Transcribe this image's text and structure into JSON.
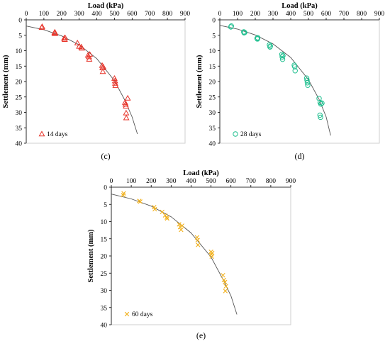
{
  "chart_data": [
    {
      "type": "scatter",
      "xlabel": "Load (kPa)",
      "ylabel": "Settlement (mm)",
      "xlim": [
        0,
        900
      ],
      "ylim": [
        0,
        40
      ],
      "x_ticks": [
        0,
        100,
        200,
        300,
        400,
        500,
        600,
        700,
        800,
        900
      ],
      "y_ticks": [
        0,
        5,
        10,
        15,
        20,
        25,
        30,
        35,
        40
      ],
      "x_axis_position": "top",
      "y_axis_reversed": true,
      "grid": false,
      "legend": "bottom-left",
      "caption": "(c)",
      "color": "#e8342a",
      "marker": "triangle",
      "series": [
        {
          "name": "14 days",
          "points": [
            [
              88,
              2.5
            ],
            [
              90,
              2.2
            ],
            [
              160,
              4.2
            ],
            [
              162,
              4.0
            ],
            [
              163,
              4.5
            ],
            [
              215,
              6.0
            ],
            [
              218,
              6.4
            ],
            [
              220,
              5.8
            ],
            [
              290,
              7.5
            ],
            [
              300,
              8.6
            ],
            [
              312,
              8.8
            ],
            [
              315,
              9.2
            ],
            [
              350,
              11.5
            ],
            [
              355,
              12.0
            ],
            [
              357,
              12.8
            ],
            [
              360,
              11.2
            ],
            [
              430,
              14.8
            ],
            [
              432,
              15.6
            ],
            [
              434,
              16.8
            ],
            [
              436,
              15.2
            ],
            [
              500,
              19.0
            ],
            [
              503,
              19.8
            ],
            [
              504,
              20.6
            ],
            [
              506,
              21.3
            ],
            [
              560,
              26.8
            ],
            [
              563,
              27.4
            ],
            [
              565,
              28.0
            ],
            [
              566,
              30.2
            ],
            [
              567,
              31.8
            ],
            [
              575,
              25.4
            ]
          ]
        }
      ],
      "trend": [
        [
          0,
          2
        ],
        [
          100,
          3.2
        ],
        [
          200,
          5.2
        ],
        [
          300,
          8.1
        ],
        [
          400,
          12.6
        ],
        [
          500,
          19.7
        ],
        [
          560,
          26.2
        ],
        [
          600,
          31.5
        ],
        [
          630,
          37
        ]
      ]
    },
    {
      "type": "scatter",
      "xlabel": "Load (kPa)",
      "ylabel": "Settlement (mm)",
      "xlim": [
        0,
        900
      ],
      "ylim": [
        0,
        40
      ],
      "x_ticks": [
        0,
        100,
        200,
        300,
        400,
        500,
        600,
        700,
        800,
        900
      ],
      "y_ticks": [
        0,
        5,
        10,
        15,
        20,
        25,
        30,
        35,
        40
      ],
      "x_axis_position": "top",
      "y_axis_reversed": true,
      "grid": false,
      "legend": "bottom-left",
      "caption": "(d)",
      "color": "#1fbf8f",
      "marker": "circle",
      "series": [
        {
          "name": "28 days",
          "points": [
            [
              62,
              2.3
            ],
            [
              65,
              2.0
            ],
            [
              135,
              3.9
            ],
            [
              137,
              4.2
            ],
            [
              140,
              4.1
            ],
            [
              210,
              6.0
            ],
            [
              212,
              6.2
            ],
            [
              214,
              5.8
            ],
            [
              280,
              8.1
            ],
            [
              283,
              8.8
            ],
            [
              285,
              8.5
            ],
            [
              350,
              11.2
            ],
            [
              352,
              12.0
            ],
            [
              354,
              12.8
            ],
            [
              356,
              11.6
            ],
            [
              420,
              14.7
            ],
            [
              423,
              15.2
            ],
            [
              425,
              16.5
            ],
            [
              490,
              18.9
            ],
            [
              492,
              19.6
            ],
            [
              494,
              20.4
            ],
            [
              496,
              21.2
            ],
            [
              560,
              25.5
            ],
            [
              566,
              26.8
            ],
            [
              570,
              27.3
            ],
            [
              576,
              27.0
            ],
            [
              565,
              30.9
            ],
            [
              568,
              31.6
            ]
          ]
        }
      ],
      "trend": [
        [
          0,
          1.8
        ],
        [
          100,
          3.0
        ],
        [
          200,
          4.9
        ],
        [
          300,
          7.8
        ],
        [
          400,
          12.2
        ],
        [
          500,
          19.4
        ],
        [
          560,
          25.8
        ],
        [
          600,
          31.5
        ],
        [
          625,
          37.5
        ]
      ]
    },
    {
      "type": "scatter",
      "xlabel": "Load (kPa)",
      "ylabel": "Settlement (mm)",
      "xlim": [
        0,
        900
      ],
      "ylim": [
        0,
        40
      ],
      "x_ticks": [
        0,
        100,
        200,
        300,
        400,
        500,
        600,
        700,
        800,
        900
      ],
      "y_ticks": [
        0,
        5,
        10,
        15,
        20,
        25,
        30,
        35,
        40
      ],
      "x_axis_position": "top",
      "y_axis_reversed": true,
      "grid": false,
      "legend": "bottom-left",
      "caption": "(e)",
      "color": "#f2b21f",
      "marker": "x",
      "series": [
        {
          "name": "60 days",
          "points": [
            [
              60,
              2.3
            ],
            [
              62,
              1.8
            ],
            [
              140,
              4.0
            ],
            [
              145,
              4.2
            ],
            [
              215,
              5.8
            ],
            [
              218,
              6.4
            ],
            [
              255,
              7.2
            ],
            [
              270,
              8.2
            ],
            [
              278,
              8.8
            ],
            [
              280,
              9.1
            ],
            [
              340,
              10.8
            ],
            [
              345,
              11.6
            ],
            [
              350,
              12.4
            ],
            [
              355,
              11.2
            ],
            [
              430,
              14.6
            ],
            [
              433,
              15.4
            ],
            [
              435,
              16.8
            ],
            [
              500,
              18.8
            ],
            [
              502,
              19.5
            ],
            [
              504,
              20.2
            ],
            [
              506,
              19.1
            ],
            [
              560,
              25.6
            ],
            [
              565,
              27.0
            ],
            [
              570,
              27.6
            ],
            [
              575,
              28.8
            ],
            [
              572,
              30.2
            ]
          ]
        }
      ],
      "trend": [
        [
          0,
          2
        ],
        [
          100,
          3.4
        ],
        [
          200,
          5.5
        ],
        [
          300,
          8.6
        ],
        [
          400,
          13.3
        ],
        [
          500,
          20.3
        ],
        [
          560,
          26.8
        ],
        [
          600,
          31.6
        ],
        [
          630,
          37
        ]
      ]
    }
  ]
}
